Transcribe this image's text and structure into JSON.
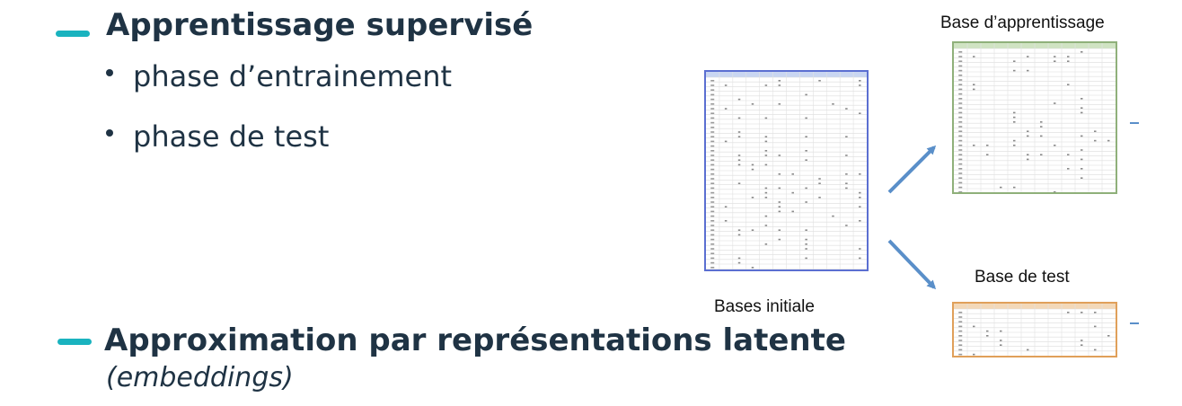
{
  "colors": {
    "accent": "#1ab3bf",
    "text": "#1f3344",
    "initial_border": "#5b6fd1",
    "train_border": "#8fb07a",
    "test_border": "#e0a05a",
    "arrow": "#5a8fc9"
  },
  "section1": {
    "title": "Apprentissage supervisé",
    "bullets": [
      "phase d’entrainement",
      "phase de test"
    ]
  },
  "section2": {
    "title": "Approximation par représentations latente",
    "subtitle": "(embeddings)"
  },
  "diagram": {
    "initial_label": "Bases initiale",
    "train_label": "Base d’apprentissage",
    "test_label": "Base de test"
  }
}
